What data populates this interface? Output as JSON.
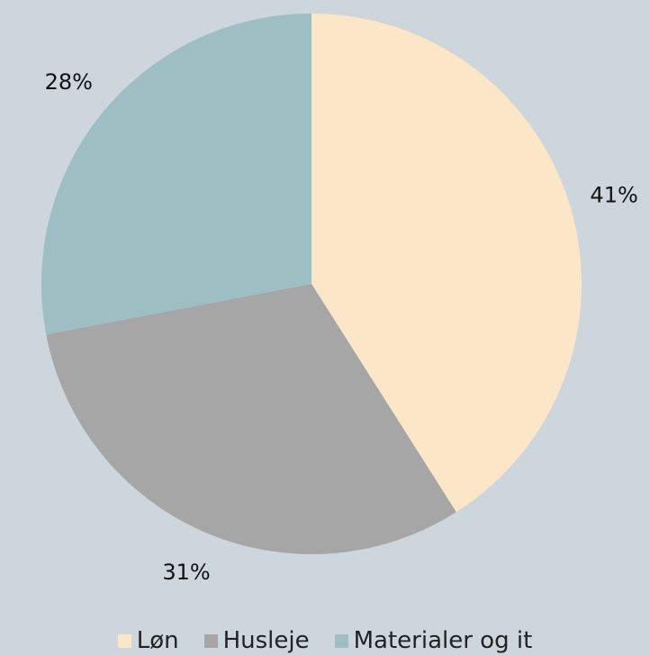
{
  "chart_data": {
    "type": "pie",
    "categories": [
      "Løn",
      "Husleje",
      "Materialer og it"
    ],
    "values": [
      41,
      31,
      28
    ],
    "value_labels": [
      "41%",
      "31%",
      "28%"
    ],
    "colors": [
      "#fce6c8",
      "#a6a6a6",
      "#9dbfc4"
    ]
  }
}
